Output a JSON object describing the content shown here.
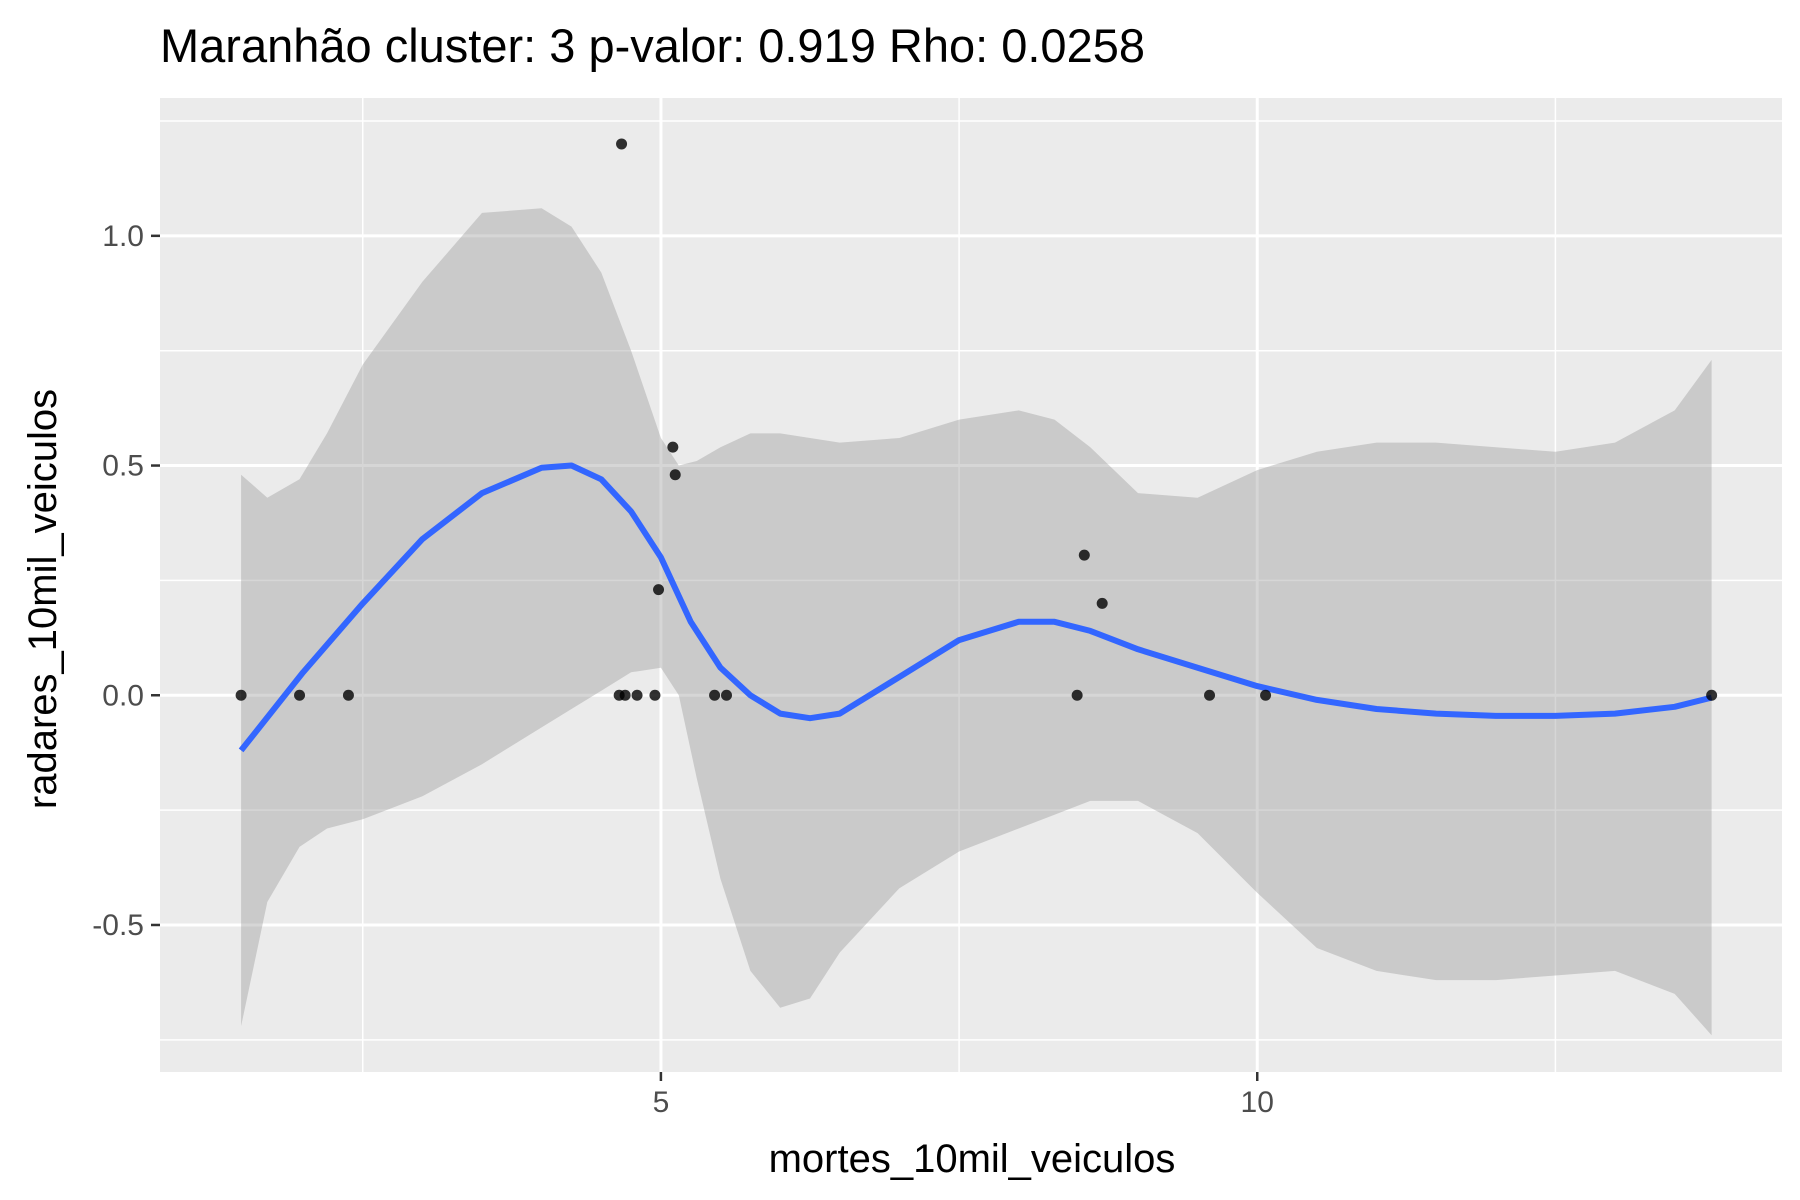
{
  "chart_data": {
    "type": "scatter",
    "title": "Maranhão cluster: 3 p-valor: 0.919 Rho: 0.0258",
    "xlabel": "mortes_10mil_veiculos",
    "ylabel": "radares_10mil_veiculos",
    "xlim": [
      0.8,
      14.4
    ],
    "ylim": [
      -0.82,
      1.3
    ],
    "x_ticks": [
      5,
      10
    ],
    "x_tick_labels": [
      "5",
      "10"
    ],
    "x_minor_ticks": [
      2.5,
      7.5,
      12.5
    ],
    "y_ticks": [
      -0.5,
      0.0,
      0.5,
      1.0
    ],
    "y_tick_labels": [
      "-0.5",
      "0.0",
      "0.5",
      "1.0"
    ],
    "y_minor_ticks": [
      -0.75,
      -0.25,
      0.25,
      0.75,
      1.25
    ],
    "grid": true,
    "legend": "none",
    "colors": {
      "panel_background": "#ebebeb",
      "grid": "#ffffff",
      "points": "#000000",
      "smooth_line": "#3366ff",
      "confidence_band": "#999999"
    },
    "series": [
      {
        "type": "points",
        "x": [
          1.48,
          1.97,
          2.38,
          4.65,
          4.67,
          4.7,
          4.8,
          4.95,
          4.98,
          5.1,
          5.12,
          5.45,
          5.55,
          8.49,
          8.55,
          8.7,
          9.6,
          10.07,
          13.81
        ],
        "y": [
          0.0,
          0.0,
          0.0,
          0.0,
          1.2,
          0.0,
          0.0,
          0.0,
          0.23,
          0.54,
          0.48,
          0.0,
          0.0,
          0.0,
          0.305,
          0.2,
          0.0,
          0.0,
          0.0
        ]
      },
      {
        "type": "smooth",
        "x": [
          1.48,
          2.0,
          2.5,
          3.0,
          3.5,
          4.0,
          4.25,
          4.5,
          4.75,
          5.0,
          5.25,
          5.5,
          5.75,
          6.0,
          6.25,
          6.5,
          7.0,
          7.5,
          8.0,
          8.3,
          8.6,
          9.0,
          9.5,
          10.0,
          10.5,
          11.0,
          11.5,
          12.0,
          12.5,
          13.0,
          13.5,
          13.81
        ],
        "y": [
          -0.12,
          0.05,
          0.2,
          0.34,
          0.44,
          0.495,
          0.5,
          0.47,
          0.4,
          0.3,
          0.16,
          0.06,
          0.0,
          -0.04,
          -0.05,
          -0.04,
          0.04,
          0.12,
          0.16,
          0.16,
          0.14,
          0.1,
          0.06,
          0.02,
          -0.01,
          -0.03,
          -0.04,
          -0.045,
          -0.045,
          -0.04,
          -0.025,
          -0.005
        ]
      },
      {
        "type": "ribbon",
        "x": [
          1.48,
          1.7,
          1.97,
          2.2,
          2.5,
          3.0,
          3.5,
          4.0,
          4.25,
          4.5,
          4.75,
          5.0,
          5.15,
          5.3,
          5.5,
          5.75,
          6.0,
          6.25,
          6.5,
          7.0,
          7.5,
          8.0,
          8.3,
          8.6,
          9.0,
          9.5,
          10.0,
          10.5,
          11.0,
          11.5,
          12.0,
          12.5,
          13.0,
          13.5,
          13.81
        ],
        "ymin": [
          -0.72,
          -0.45,
          -0.33,
          -0.29,
          -0.27,
          -0.22,
          -0.15,
          -0.07,
          -0.03,
          0.01,
          0.05,
          0.06,
          0.0,
          -0.18,
          -0.4,
          -0.6,
          -0.68,
          -0.66,
          -0.56,
          -0.42,
          -0.34,
          -0.29,
          -0.26,
          -0.23,
          -0.23,
          -0.3,
          -0.43,
          -0.55,
          -0.6,
          -0.62,
          -0.62,
          -0.61,
          -0.6,
          -0.65,
          -0.74
        ],
        "ymax": [
          0.48,
          0.43,
          0.47,
          0.57,
          0.72,
          0.9,
          1.05,
          1.06,
          1.02,
          0.92,
          0.75,
          0.56,
          0.5,
          0.51,
          0.54,
          0.57,
          0.57,
          0.56,
          0.55,
          0.56,
          0.6,
          0.62,
          0.6,
          0.54,
          0.44,
          0.43,
          0.49,
          0.53,
          0.55,
          0.55,
          0.54,
          0.53,
          0.55,
          0.62,
          0.73
        ]
      }
    ]
  }
}
